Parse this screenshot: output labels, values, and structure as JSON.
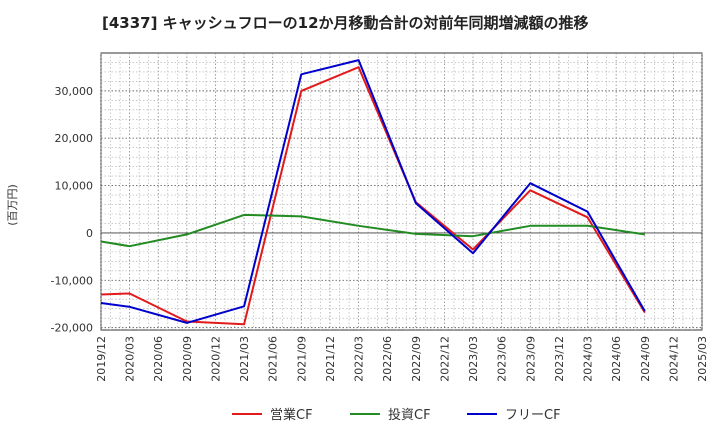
{
  "chart_data": {
    "type": "line",
    "title": "[4337]  キャッシュフローの12か月移動合計の対前年同期増減額の推移",
    "ylabel": "(百万円)",
    "xlabel": "",
    "ylim": [
      -20500,
      38000
    ],
    "yticks": [
      -20000,
      -10000,
      0,
      10000,
      20000,
      30000
    ],
    "ytick_labels": [
      "-20,000",
      "-10,000",
      "0",
      "10,000",
      "20,000",
      "30,000"
    ],
    "categories": [
      "2019/12",
      "2020/03",
      "2020/06",
      "2020/09",
      "2020/12",
      "2021/03",
      "2021/06",
      "2021/09",
      "2021/12",
      "2022/03",
      "2022/06",
      "2022/09",
      "2022/12",
      "2023/03",
      "2023/06",
      "2023/09",
      "2023/12",
      "2024/03",
      "2024/06",
      "2024/09",
      "2024/12",
      "2025/03"
    ],
    "grid": true,
    "legend_position": "bottom",
    "series": [
      {
        "name": "営業CF",
        "color": "#e31a1c",
        "values": [
          -13000,
          -12800,
          null,
          -18700,
          null,
          -19300,
          null,
          30000,
          null,
          35000,
          null,
          6500,
          null,
          -3500,
          null,
          9000,
          null,
          3300,
          null,
          -16800,
          null,
          null
        ]
      },
      {
        "name": "投資CF",
        "color": "#228b22",
        "values": [
          -1800,
          -2800,
          null,
          -300,
          null,
          3800,
          null,
          3500,
          null,
          1500,
          null,
          -200,
          null,
          -700,
          null,
          1500,
          null,
          1500,
          null,
          -300,
          null,
          null
        ]
      },
      {
        "name": "フリーCF",
        "color": "#0000cc",
        "values": [
          -14800,
          -15600,
          null,
          -19000,
          null,
          -15500,
          null,
          33500,
          null,
          36500,
          null,
          6300,
          null,
          -4300,
          null,
          10500,
          null,
          4500,
          null,
          -16500,
          null,
          null
        ]
      }
    ]
  }
}
